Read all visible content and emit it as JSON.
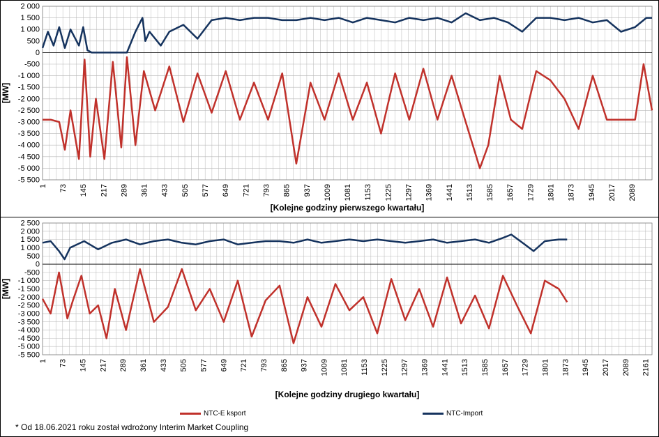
{
  "colors": {
    "export": "#c0312b",
    "import": "#15335e",
    "grid": "#b8b8b8"
  },
  "legend": {
    "export_label": "NTC-E ksport",
    "import_label": "NTC-Import"
  },
  "footnote": "* Od 18.06.2021  roku został wdrożony  Interim Market Coupling",
  "chart_data": [
    {
      "type": "line",
      "xlabel": "[Kolejne godziny  pierwszego  kwartału]",
      "ylabel": "[MW]",
      "ylim": [
        -5500,
        2000
      ],
      "yticks": [
        2000,
        1500,
        1000,
        500,
        0,
        -500,
        -1000,
        -1500,
        -2000,
        -2500,
        -3000,
        -3500,
        -4000,
        -4500,
        -5000,
        -5500
      ],
      "ytick_labels": [
        "2 000",
        "1 500",
        "1 000",
        "500",
        "0",
        "-500",
        "-1 000",
        "-1 500",
        "-2 000",
        "-2 500",
        "-3 000",
        "-3 500",
        "-4 000",
        "-4 500",
        "-5 000",
        "-5 500"
      ],
      "xlim": [
        1,
        2160
      ],
      "xticks": [
        1,
        73,
        145,
        217,
        289,
        361,
        433,
        505,
        577,
        649,
        721,
        793,
        865,
        937,
        1009,
        1081,
        1153,
        1225,
        1297,
        1369,
        1441,
        1513,
        1585,
        1657,
        1729,
        1801,
        1873,
        1945,
        2017,
        2089
      ],
      "grid": true,
      "series": [
        {
          "name": "NTC-Import",
          "color": "#15335e",
          "x": [
            1,
            20,
            40,
            60,
            80,
            100,
            130,
            145,
            160,
            175,
            200,
            250,
            300,
            330,
            355,
            365,
            380,
            420,
            450,
            500,
            550,
            600,
            650,
            700,
            750,
            800,
            850,
            900,
            950,
            1000,
            1050,
            1100,
            1150,
            1200,
            1250,
            1300,
            1350,
            1400,
            1450,
            1500,
            1550,
            1600,
            1650,
            1700,
            1750,
            1800,
            1850,
            1900,
            1950,
            2000,
            2050,
            2100,
            2140,
            2160
          ],
          "y": [
            200,
            900,
            300,
            1100,
            200,
            1000,
            300,
            1100,
            100,
            0,
            0,
            0,
            0,
            900,
            1500,
            500,
            900,
            300,
            900,
            1200,
            600,
            1400,
            1500,
            1400,
            1500,
            1500,
            1400,
            1400,
            1500,
            1400,
            1500,
            1300,
            1500,
            1400,
            1300,
            1500,
            1400,
            1500,
            1300,
            1700,
            1400,
            1500,
            1300,
            900,
            1500,
            1500,
            1400,
            1500,
            1300,
            1400,
            900,
            1100,
            1500,
            1500
          ]
        },
        {
          "name": "NTC-E ksport",
          "color": "#c0312b",
          "x": [
            1,
            30,
            60,
            80,
            100,
            130,
            150,
            170,
            190,
            220,
            250,
            280,
            300,
            330,
            360,
            400,
            450,
            500,
            550,
            600,
            650,
            700,
            750,
            800,
            850,
            900,
            950,
            1000,
            1050,
            1100,
            1150,
            1200,
            1250,
            1300,
            1350,
            1400,
            1450,
            1500,
            1550,
            1580,
            1620,
            1660,
            1700,
            1750,
            1800,
            1850,
            1900,
            1950,
            2000,
            2050,
            2100,
            2130,
            2160
          ],
          "y": [
            -2900,
            -2900,
            -3000,
            -4200,
            -2500,
            -4600,
            -300,
            -4500,
            -2000,
            -4600,
            -400,
            -4100,
            -200,
            -4000,
            -800,
            -2500,
            -600,
            -3000,
            -900,
            -2600,
            -800,
            -2900,
            -1300,
            -2900,
            -900,
            -4800,
            -1300,
            -2900,
            -900,
            -2900,
            -1300,
            -3500,
            -900,
            -2900,
            -700,
            -2900,
            -1000,
            -3000,
            -5000,
            -4000,
            -1000,
            -2900,
            -3300,
            -800,
            -1200,
            -2000,
            -3300,
            -1000,
            -2900,
            -2900,
            -2900,
            -500,
            -2500
          ]
        }
      ]
    },
    {
      "type": "line",
      "xlabel": "[Kolejne godziny  drugiego  kwartału]",
      "ylabel": "[MW]",
      "ylim": [
        -5500,
        2500
      ],
      "yticks": [
        2500,
        2000,
        1500,
        1000,
        500,
        0,
        -500,
        -1000,
        -1500,
        -2000,
        -2500,
        -3000,
        -3500,
        -4000,
        -4500,
        -5000,
        -5500
      ],
      "ytick_labels": [
        "2 500",
        "2 000",
        "1 500",
        "1 000",
        "500",
        "0",
        "-500",
        "-1 000",
        "-1 500",
        "-2 000",
        "-2 500",
        "-3 000",
        "-3 500",
        "-4 000",
        "-4 500",
        "-5 000",
        "-5 500"
      ],
      "xlim": [
        1,
        2184
      ],
      "xticks": [
        1,
        73,
        145,
        217,
        289,
        361,
        433,
        505,
        577,
        649,
        721,
        793,
        865,
        937,
        1009,
        1081,
        1153,
        1225,
        1297,
        1369,
        1441,
        1513,
        1585,
        1657,
        1729,
        1801,
        1873,
        1945,
        2017,
        2089,
        2161
      ],
      "grid": true,
      "series": [
        {
          "name": "NTC-Import",
          "color": "#15335e",
          "x": [
            1,
            30,
            60,
            80,
            100,
            150,
            200,
            250,
            300,
            350,
            400,
            450,
            500,
            550,
            600,
            650,
            700,
            750,
            800,
            850,
            900,
            950,
            1000,
            1050,
            1100,
            1150,
            1200,
            1250,
            1300,
            1350,
            1400,
            1450,
            1500,
            1550,
            1600,
            1650,
            1680,
            1720,
            1760,
            1800,
            1850,
            1880
          ],
          "y": [
            1300,
            1400,
            800,
            300,
            1000,
            1400,
            900,
            1300,
            1500,
            1200,
            1400,
            1500,
            1300,
            1200,
            1400,
            1500,
            1200,
            1300,
            1400,
            1400,
            1300,
            1500,
            1300,
            1400,
            1500,
            1400,
            1500,
            1400,
            1300,
            1400,
            1500,
            1300,
            1400,
            1500,
            1300,
            1600,
            1800,
            1300,
            800,
            1400,
            1500,
            1500
          ]
        },
        {
          "name": "NTC-E ksport",
          "color": "#c0312b",
          "x": [
            1,
            30,
            60,
            90,
            110,
            140,
            170,
            200,
            230,
            260,
            300,
            350,
            400,
            450,
            500,
            550,
            600,
            650,
            700,
            750,
            800,
            850,
            900,
            950,
            1000,
            1050,
            1100,
            1150,
            1200,
            1250,
            1300,
            1350,
            1400,
            1450,
            1500,
            1550,
            1600,
            1650,
            1700,
            1750,
            1800,
            1850,
            1880
          ],
          "y": [
            -2100,
            -3000,
            -500,
            -3300,
            -2200,
            -700,
            -3000,
            -2500,
            -4500,
            -1500,
            -4000,
            -300,
            -3500,
            -2600,
            -300,
            -2800,
            -1500,
            -3500,
            -1000,
            -4400,
            -2200,
            -1300,
            -4800,
            -2000,
            -3800,
            -1200,
            -2800,
            -2000,
            -4200,
            -900,
            -3400,
            -1500,
            -3800,
            -800,
            -3600,
            -1900,
            -3900,
            -700,
            -2500,
            -4200,
            -1000,
            -1500,
            -2300
          ]
        }
      ]
    }
  ]
}
